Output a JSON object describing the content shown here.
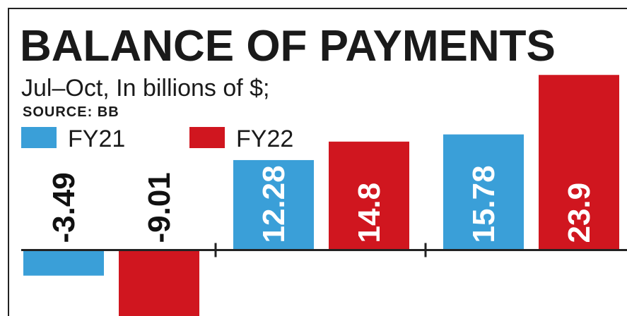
{
  "chart_data": {
    "type": "bar",
    "title": "BALANCE OF PAYMENTS",
    "subtitle": "Jul–Oct, In billions of $;",
    "source": "SOURCE: BB",
    "categories": [
      null,
      null,
      null
    ],
    "series": [
      {
        "name": "FY21",
        "color": "#3a9fd8",
        "values": [
          -3.49,
          12.28,
          15.78
        ]
      },
      {
        "name": "FY22",
        "color": "#d0161f",
        "values": [
          -9.01,
          14.8,
          23.9
        ]
      }
    ],
    "ylim": [
      -9,
      24.5
    ]
  }
}
